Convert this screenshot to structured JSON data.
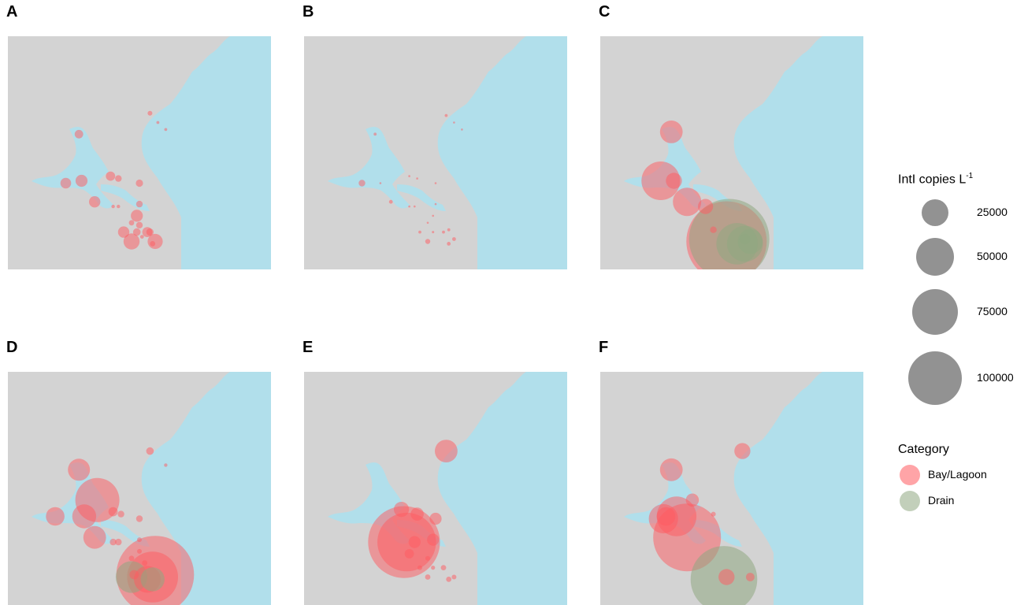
{
  "colors": {
    "land": "#d3d3d3",
    "water": "#b1dfeb",
    "bay_lagoon": "#ff5a5f",
    "drain": "#8fa882",
    "legend_circle": "#8c8c8c"
  },
  "legend": {
    "size_title": "IntI copies L",
    "size_title_sup": "-1",
    "sizes": [
      {
        "value": 25000,
        "label": "25000"
      },
      {
        "value": 50000,
        "label": "50000"
      },
      {
        "value": 75000,
        "label": "75000"
      },
      {
        "value": 100000,
        "label": "100000"
      }
    ],
    "category_title": "Category",
    "categories": [
      {
        "key": "bay_lagoon",
        "label": "Bay/Lagoon"
      },
      {
        "key": "drain",
        "label": "Drain"
      }
    ]
  },
  "chart_data": [
    {
      "type": "scatter",
      "panel": "A",
      "label": "A",
      "size_variable": "IntI copies L-1",
      "points": [
        {
          "category": "bay_lagoon",
          "lon": 0.54,
          "lat": 0.33,
          "value": 800
        },
        {
          "category": "bay_lagoon",
          "lon": 0.57,
          "lat": 0.37,
          "value": 300
        },
        {
          "category": "bay_lagoon",
          "lon": 0.6,
          "lat": 0.4,
          "value": 300
        },
        {
          "category": "bay_lagoon",
          "lon": 0.27,
          "lat": 0.42,
          "value": 2500
        },
        {
          "category": "bay_lagoon",
          "lon": 0.22,
          "lat": 0.63,
          "value": 4000
        },
        {
          "category": "bay_lagoon",
          "lon": 0.28,
          "lat": 0.62,
          "value": 5000
        },
        {
          "category": "bay_lagoon",
          "lon": 0.39,
          "lat": 0.6,
          "value": 3000
        },
        {
          "category": "bay_lagoon",
          "lon": 0.42,
          "lat": 0.61,
          "value": 1500
        },
        {
          "category": "bay_lagoon",
          "lon": 0.5,
          "lat": 0.63,
          "value": 1800
        },
        {
          "category": "bay_lagoon",
          "lon": 0.33,
          "lat": 0.71,
          "value": 4500
        },
        {
          "category": "bay_lagoon",
          "lon": 0.4,
          "lat": 0.73,
          "value": 400
        },
        {
          "category": "bay_lagoon",
          "lon": 0.42,
          "lat": 0.73,
          "value": 400
        },
        {
          "category": "bay_lagoon",
          "lon": 0.5,
          "lat": 0.72,
          "value": 1500
        },
        {
          "category": "bay_lagoon",
          "lon": 0.49,
          "lat": 0.77,
          "value": 5000
        },
        {
          "category": "bay_lagoon",
          "lon": 0.47,
          "lat": 0.8,
          "value": 1000
        },
        {
          "category": "bay_lagoon",
          "lon": 0.44,
          "lat": 0.84,
          "value": 4500
        },
        {
          "category": "bay_lagoon",
          "lon": 0.49,
          "lat": 0.84,
          "value": 2000
        },
        {
          "category": "bay_lagoon",
          "lon": 0.5,
          "lat": 0.81,
          "value": 1500
        },
        {
          "category": "bay_lagoon",
          "lon": 0.53,
          "lat": 0.84,
          "value": 3500
        },
        {
          "category": "bay_lagoon",
          "lon": 0.54,
          "lat": 0.84,
          "value": 1800
        },
        {
          "category": "bay_lagoon",
          "lon": 0.51,
          "lat": 0.86,
          "value": 500
        },
        {
          "category": "bay_lagoon",
          "lon": 0.47,
          "lat": 0.88,
          "value": 9000
        },
        {
          "category": "bay_lagoon",
          "lon": 0.56,
          "lat": 0.88,
          "value": 8000
        },
        {
          "category": "bay_lagoon",
          "lon": 0.55,
          "lat": 0.89,
          "value": 1000
        }
      ]
    },
    {
      "type": "scatter",
      "panel": "B",
      "label": "B",
      "size_variable": "IntI copies L-1",
      "points": [
        {
          "category": "bay_lagoon",
          "lon": 0.54,
          "lat": 0.34,
          "value": 300
        },
        {
          "category": "bay_lagoon",
          "lon": 0.57,
          "lat": 0.37,
          "value": 100
        },
        {
          "category": "bay_lagoon",
          "lon": 0.6,
          "lat": 0.4,
          "value": 100
        },
        {
          "category": "bay_lagoon",
          "lon": 0.27,
          "lat": 0.42,
          "value": 300
        },
        {
          "category": "bay_lagoon",
          "lon": 0.22,
          "lat": 0.63,
          "value": 1500
        },
        {
          "category": "bay_lagoon",
          "lon": 0.29,
          "lat": 0.63,
          "value": 100
        },
        {
          "category": "bay_lagoon",
          "lon": 0.4,
          "lat": 0.6,
          "value": 100
        },
        {
          "category": "bay_lagoon",
          "lon": 0.43,
          "lat": 0.61,
          "value": 100
        },
        {
          "category": "bay_lagoon",
          "lon": 0.5,
          "lat": 0.63,
          "value": 100
        },
        {
          "category": "bay_lagoon",
          "lon": 0.33,
          "lat": 0.71,
          "value": 500
        },
        {
          "category": "bay_lagoon",
          "lon": 0.4,
          "lat": 0.73,
          "value": 100
        },
        {
          "category": "bay_lagoon",
          "lon": 0.42,
          "lat": 0.73,
          "value": 100
        },
        {
          "category": "bay_lagoon",
          "lon": 0.5,
          "lat": 0.72,
          "value": 100
        },
        {
          "category": "bay_lagoon",
          "lon": 0.49,
          "lat": 0.77,
          "value": 100
        },
        {
          "category": "bay_lagoon",
          "lon": 0.47,
          "lat": 0.8,
          "value": 100
        },
        {
          "category": "bay_lagoon",
          "lon": 0.44,
          "lat": 0.84,
          "value": 300
        },
        {
          "category": "bay_lagoon",
          "lon": 0.49,
          "lat": 0.84,
          "value": 200
        },
        {
          "category": "bay_lagoon",
          "lon": 0.53,
          "lat": 0.84,
          "value": 300
        },
        {
          "category": "bay_lagoon",
          "lon": 0.55,
          "lat": 0.83,
          "value": 300
        },
        {
          "category": "bay_lagoon",
          "lon": 0.47,
          "lat": 0.88,
          "value": 900
        },
        {
          "category": "bay_lagoon",
          "lon": 0.55,
          "lat": 0.89,
          "value": 500
        },
        {
          "category": "bay_lagoon",
          "lon": 0.57,
          "lat": 0.87,
          "value": 500
        }
      ]
    },
    {
      "type": "scatter",
      "panel": "C",
      "label": "C",
      "size_variable": "IntI copies L-1",
      "points": [
        {
          "category": "bay_lagoon",
          "lon": 0.27,
          "lat": 0.41,
          "value": 18000
        },
        {
          "category": "bay_lagoon",
          "lon": 0.23,
          "lat": 0.62,
          "value": 52000
        },
        {
          "category": "bay_lagoon",
          "lon": 0.28,
          "lat": 0.62,
          "value": 9000
        },
        {
          "category": "bay_lagoon",
          "lon": 0.33,
          "lat": 0.71,
          "value": 28000
        },
        {
          "category": "bay_lagoon",
          "lon": 0.4,
          "lat": 0.73,
          "value": 8000
        },
        {
          "category": "bay_lagoon",
          "lon": 0.43,
          "lat": 0.83,
          "value": 1500
        },
        {
          "category": "bay_lagoon",
          "lon": 0.48,
          "lat": 0.88,
          "value": 225000
        },
        {
          "category": "drain",
          "lon": 0.49,
          "lat": 0.87,
          "value": 225000
        },
        {
          "category": "drain",
          "lon": 0.52,
          "lat": 0.89,
          "value": 60000
        },
        {
          "category": "drain",
          "lon": 0.55,
          "lat": 0.89,
          "value": 45000
        },
        {
          "category": "drain",
          "lon": 0.57,
          "lat": 0.88,
          "value": 22000
        },
        {
          "category": "drain",
          "lon": 0.55,
          "lat": 0.87,
          "value": 4000
        }
      ]
    },
    {
      "type": "scatter",
      "panel": "D",
      "label": "D",
      "size_variable": "IntI copies L-1",
      "points": [
        {
          "category": "bay_lagoon",
          "lon": 0.54,
          "lat": 0.34,
          "value": 2000
        },
        {
          "category": "bay_lagoon",
          "lon": 0.6,
          "lat": 0.4,
          "value": 400
        },
        {
          "category": "bay_lagoon",
          "lon": 0.27,
          "lat": 0.42,
          "value": 17000
        },
        {
          "category": "bay_lagoon",
          "lon": 0.34,
          "lat": 0.55,
          "value": 68000
        },
        {
          "category": "bay_lagoon",
          "lon": 0.18,
          "lat": 0.62,
          "value": 12000
        },
        {
          "category": "bay_lagoon",
          "lon": 0.29,
          "lat": 0.62,
          "value": 20000
        },
        {
          "category": "bay_lagoon",
          "lon": 0.4,
          "lat": 0.6,
          "value": 3000
        },
        {
          "category": "bay_lagoon",
          "lon": 0.43,
          "lat": 0.61,
          "value": 1500
        },
        {
          "category": "bay_lagoon",
          "lon": 0.5,
          "lat": 0.63,
          "value": 1500
        },
        {
          "category": "bay_lagoon",
          "lon": 0.33,
          "lat": 0.71,
          "value": 18000
        },
        {
          "category": "bay_lagoon",
          "lon": 0.4,
          "lat": 0.73,
          "value": 1500
        },
        {
          "category": "bay_lagoon",
          "lon": 0.42,
          "lat": 0.73,
          "value": 1500
        },
        {
          "category": "bay_lagoon",
          "lon": 0.5,
          "lat": 0.72,
          "value": 800
        },
        {
          "category": "bay_lagoon",
          "lon": 0.5,
          "lat": 0.77,
          "value": 800
        },
        {
          "category": "bay_lagoon",
          "lon": 0.47,
          "lat": 0.8,
          "value": 1000
        },
        {
          "category": "bay_lagoon",
          "lon": 0.52,
          "lat": 0.82,
          "value": 1000
        },
        {
          "category": "bay_lagoon",
          "lon": 0.56,
          "lat": 0.87,
          "value": 210000
        },
        {
          "category": "bay_lagoon",
          "lon": 0.55,
          "lat": 0.88,
          "value": 90000
        },
        {
          "category": "bay_lagoon",
          "lon": 0.53,
          "lat": 0.89,
          "value": 25000
        },
        {
          "category": "bay_lagoon",
          "lon": 0.48,
          "lat": 0.87,
          "value": 3000
        },
        {
          "category": "drain",
          "lon": 0.47,
          "lat": 0.88,
          "value": 35000
        },
        {
          "category": "drain",
          "lon": 0.55,
          "lat": 0.89,
          "value": 20000
        }
      ]
    },
    {
      "type": "scatter",
      "panel": "E",
      "label": "E",
      "size_variable": "IntI copies L-1",
      "points": [
        {
          "category": "bay_lagoon",
          "lon": 0.54,
          "lat": 0.34,
          "value": 18000
        },
        {
          "category": "bay_lagoon",
          "lon": 0.38,
          "lat": 0.73,
          "value": 180000
        },
        {
          "category": "bay_lagoon",
          "lon": 0.39,
          "lat": 0.73,
          "value": 120000
        },
        {
          "category": "bay_lagoon",
          "lon": 0.37,
          "lat": 0.59,
          "value": 8000
        },
        {
          "category": "bay_lagoon",
          "lon": 0.43,
          "lat": 0.61,
          "value": 6000
        },
        {
          "category": "bay_lagoon",
          "lon": 0.5,
          "lat": 0.63,
          "value": 5000
        },
        {
          "category": "bay_lagoon",
          "lon": 0.42,
          "lat": 0.73,
          "value": 5000
        },
        {
          "category": "bay_lagoon",
          "lon": 0.49,
          "lat": 0.72,
          "value": 5000
        },
        {
          "category": "bay_lagoon",
          "lon": 0.4,
          "lat": 0.78,
          "value": 3000
        },
        {
          "category": "bay_lagoon",
          "lon": 0.47,
          "lat": 0.8,
          "value": 800
        },
        {
          "category": "bay_lagoon",
          "lon": 0.44,
          "lat": 0.84,
          "value": 800
        },
        {
          "category": "bay_lagoon",
          "lon": 0.49,
          "lat": 0.84,
          "value": 600
        },
        {
          "category": "bay_lagoon",
          "lon": 0.53,
          "lat": 0.84,
          "value": 1000
        },
        {
          "category": "bay_lagoon",
          "lon": 0.47,
          "lat": 0.88,
          "value": 1000
        },
        {
          "category": "bay_lagoon",
          "lon": 0.55,
          "lat": 0.89,
          "value": 1000
        },
        {
          "category": "bay_lagoon",
          "lon": 0.57,
          "lat": 0.88,
          "value": 800
        }
      ]
    },
    {
      "type": "scatter",
      "panel": "F",
      "label": "F",
      "size_variable": "IntI copies L-1",
      "points": [
        {
          "category": "bay_lagoon",
          "lon": 0.54,
          "lat": 0.34,
          "value": 9000
        },
        {
          "category": "bay_lagoon",
          "lon": 0.27,
          "lat": 0.42,
          "value": 18000
        },
        {
          "category": "bay_lagoon",
          "lon": 0.35,
          "lat": 0.55,
          "value": 6000
        },
        {
          "category": "bay_lagoon",
          "lon": 0.24,
          "lat": 0.63,
          "value": 30000
        },
        {
          "category": "bay_lagoon",
          "lon": 0.29,
          "lat": 0.62,
          "value": 55000
        },
        {
          "category": "bay_lagoon",
          "lon": 0.25,
          "lat": 0.62,
          "value": 12000
        },
        {
          "category": "bay_lagoon",
          "lon": 0.43,
          "lat": 0.61,
          "value": 800
        },
        {
          "category": "bay_lagoon",
          "lon": 0.33,
          "lat": 0.71,
          "value": 160000
        },
        {
          "category": "bay_lagoon",
          "lon": 0.48,
          "lat": 0.88,
          "value": 9000
        },
        {
          "category": "bay_lagoon",
          "lon": 0.57,
          "lat": 0.88,
          "value": 2500
        },
        {
          "category": "drain",
          "lon": 0.47,
          "lat": 0.89,
          "value": 155000
        }
      ]
    }
  ]
}
